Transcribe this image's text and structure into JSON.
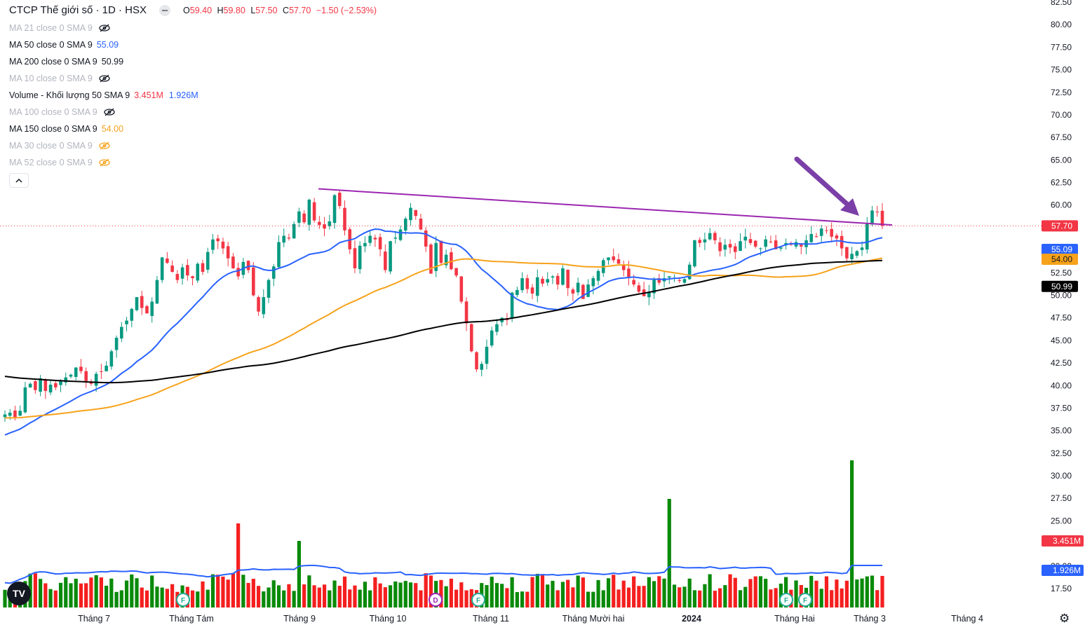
{
  "header": {
    "symbol": "CTCP Thế giới số · 1D · HSX",
    "ohlc": [
      {
        "k": "O",
        "v": "59.40"
      },
      {
        "k": "H",
        "v": "59.80"
      },
      {
        "k": "L",
        "v": "57.50"
      },
      {
        "k": "C",
        "v": "57.70"
      },
      {
        "k": "",
        "v": "−1.50 (−2.53%)"
      }
    ]
  },
  "indicators": [
    {
      "name": "MA 21 close 0 SMA 9",
      "value": "",
      "visible": false,
      "value_color": "#2962ff",
      "eye_color": "#131722"
    },
    {
      "name": "MA 50 close 0 SMA 9",
      "value": "55.09",
      "visible": true,
      "value_color": "#2962ff"
    },
    {
      "name": "MA 200 close 0 SMA 9",
      "value": "50.99",
      "visible": true,
      "value_color": "#131722"
    },
    {
      "name": "MA 10 close 0 SMA 9",
      "value": "",
      "visible": false,
      "eye_color": "#131722"
    },
    {
      "name": "Volume - Khối lượng 50 SMA 9",
      "value": "3.451M",
      "value2": "1.926M",
      "visible": true,
      "value_color": "#f23645",
      "value2_color": "#2962ff"
    },
    {
      "name": "MA 100 close 0 SMA 9",
      "value": "",
      "visible": false,
      "eye_color": "#131722"
    },
    {
      "name": "MA 150 close 0 SMA 9",
      "value": "54.00",
      "visible": true,
      "value_color": "#f7a21b"
    },
    {
      "name": "MA 30 close 0 SMA 9",
      "value": "",
      "visible": false,
      "eye_color": "#f7a21b"
    },
    {
      "name": "MA 52 close 0 SMA 9",
      "value": "",
      "visible": false,
      "eye_color": "#f7a21b"
    }
  ],
  "price_axis": {
    "ticks": [
      "82.50",
      "80.00",
      "77.50",
      "75.00",
      "72.50",
      "70.00",
      "67.50",
      "65.00",
      "62.50",
      "60.00",
      "57.50",
      "55.00",
      "52.50",
      "50.00",
      "47.50",
      "45.00",
      "42.50",
      "40.00",
      "37.50",
      "35.00",
      "32.50",
      "30.00",
      "27.50",
      "25.00",
      "20.00",
      "17.50"
    ],
    "tick_values": [
      82.5,
      80,
      77.5,
      75,
      72.5,
      70,
      67.5,
      65,
      62.5,
      60,
      57.5,
      55,
      52.5,
      50,
      47.5,
      45,
      42.5,
      40,
      37.5,
      35,
      32.5,
      30,
      27.5,
      25,
      20,
      17.5
    ],
    "badges": [
      {
        "label": "57.70",
        "value": 57.7,
        "bg": "#f23645",
        "fg": "#ffffff"
      },
      {
        "label": "55.09",
        "value": 55.09,
        "bg": "#2962ff",
        "fg": "#ffffff"
      },
      {
        "label": "54.00",
        "value": 54.0,
        "bg": "#f7a21b",
        "fg": "#131722"
      },
      {
        "label": "50.99",
        "value": 50.99,
        "bg": "#000000",
        "fg": "#ffffff"
      }
    ],
    "volume_badges": [
      {
        "label": "3.451M",
        "bg": "#f23645",
        "fg": "#ffffff"
      },
      {
        "label": "1.926M",
        "bg": "#2962ff",
        "fg": "#ffffff"
      }
    ]
  },
  "time_axis": {
    "labels": [
      {
        "text": "Tháng 7",
        "bold": false
      },
      {
        "text": "Tháng Tám",
        "bold": false
      },
      {
        "text": "Tháng 9",
        "bold": false
      },
      {
        "text": "Tháng 10",
        "bold": false
      },
      {
        "text": "Tháng 11",
        "bold": false
      },
      {
        "text": "Tháng Mười hai",
        "bold": false
      },
      {
        "text": "2024",
        "bold": true
      },
      {
        "text": "Tháng Hai",
        "bold": false
      },
      {
        "text": "Tháng 3",
        "bold": false
      },
      {
        "text": "Tháng 4",
        "bold": false
      }
    ]
  },
  "event_markers": [
    {
      "letter": "F",
      "color": "#22ab94"
    },
    {
      "letter": "D",
      "color": "#9c27b0"
    },
    {
      "letter": "F",
      "color": "#22ab94"
    },
    {
      "letter": "F",
      "color": "#22ab94"
    },
    {
      "letter": "F",
      "color": "#22ab94"
    }
  ],
  "colors": {
    "up": "#089981",
    "down": "#f23645",
    "vol_up": "#0a8a0a",
    "vol_down": "#f51f1f",
    "trendline": "#9c27b0",
    "arrow": "#7b3fa8"
  },
  "logo_text": "TV",
  "chart_data": {
    "type": "candlestick",
    "trendline_start": 61.8,
    "trendline_end": 57.8,
    "closes": [
      36.8,
      37.0,
      36.5,
      37.2,
      39.8,
      40.2,
      39.5,
      40.8,
      39.4,
      40.1,
      39.8,
      40.5,
      40.9,
      41.2,
      42.0,
      41.6,
      40.5,
      40.2,
      41.3,
      41.5,
      42.2,
      43.8,
      45.3,
      46.5,
      47.2,
      48.5,
      49.8,
      48.6,
      48.0,
      49.3,
      51.7,
      54.2,
      53.6,
      52.6,
      51.7,
      53.1,
      52.2,
      51.9,
      53.5,
      52.6,
      54.8,
      56.2,
      56.0,
      55.2,
      54.1,
      53.0,
      52.1,
      53.7,
      52.8,
      50.0,
      48.2,
      49.8,
      51.7,
      53.2,
      55.9,
      56.6,
      56.3,
      57.9,
      59.3,
      58.1,
      60.6,
      58.3,
      57.8,
      57.4,
      58.2,
      61.1,
      59.9,
      57.2,
      55.1,
      53.0,
      55.5,
      55.8,
      56.6,
      56.2,
      55.1,
      52.8,
      56.0,
      56.4,
      57.3,
      58.5,
      59.7,
      58.8,
      57.3,
      55.4,
      52.4,
      55.8,
      53.6,
      54.5,
      52.9,
      52.2,
      49.3,
      46.9,
      43.8,
      41.8,
      42.4,
      44.3,
      46.1,
      46.8,
      47.5,
      47.3,
      50.3,
      50.6,
      51.9,
      50.7,
      50.2,
      52.0,
      51.3,
      51.8,
      52.1,
      51.2,
      53.0,
      50.8,
      50.2,
      51.4,
      49.6,
      51.2,
      51.9,
      52.7,
      53.9,
      54.2,
      53.9,
      53.5,
      52.8,
      51.9,
      51.2,
      50.4,
      49.9,
      50.4,
      51.7,
      51.4,
      51.9,
      52.1,
      51.9,
      51.6,
      51.8,
      53.4,
      56.1,
      55.8,
      56.2,
      56.9,
      56.1,
      54.9,
      55.6,
      55.3,
      54.8,
      56.0,
      56.5,
      55.8,
      55.4,
      55.2,
      56.2,
      55.9,
      55.1,
      55.3,
      55.8,
      55.6,
      55.9,
      55.4,
      56.1,
      56.8,
      56.5,
      57.4,
      57.2,
      56.5,
      56.3,
      55.2,
      54.1,
      54.6,
      54.9,
      55.3,
      57.9,
      59.4,
      59.2,
      57.7
    ]
  }
}
